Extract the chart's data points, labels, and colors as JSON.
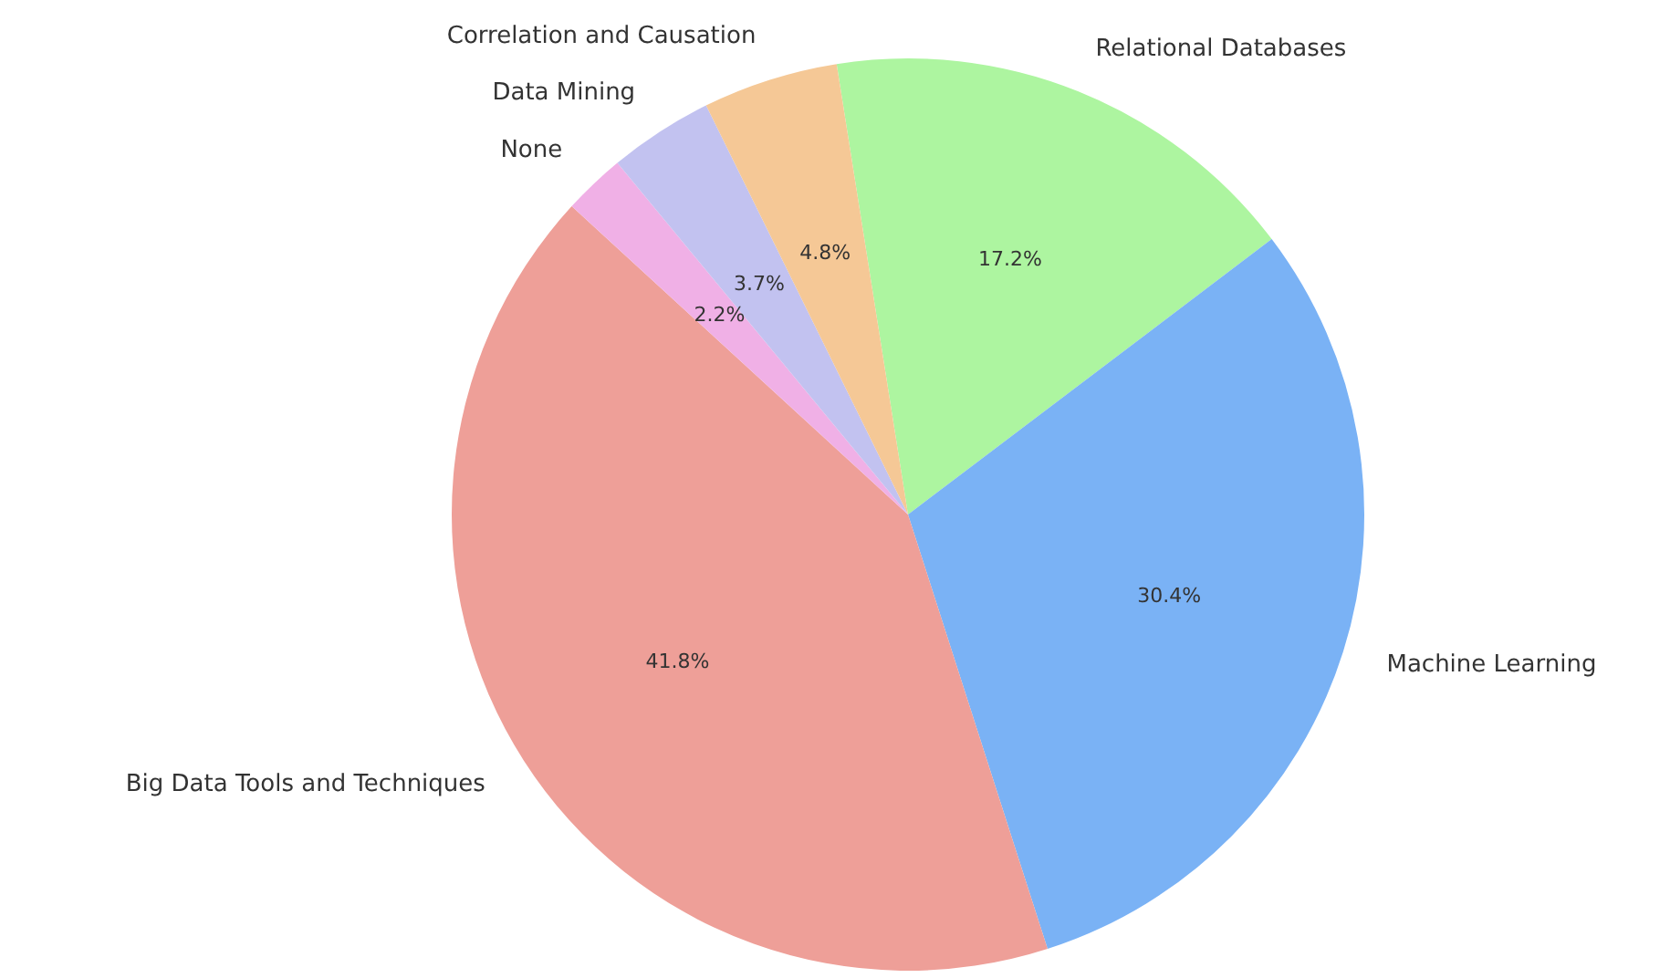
{
  "chart_data": {
    "type": "pie",
    "categories": [
      "Relational Databases",
      "Machine Learning",
      "Big Data Tools and Techniques",
      "None",
      "Data Mining",
      "Correlation and Causation"
    ],
    "values": [
      17.2,
      30.4,
      41.8,
      2.2,
      3.7,
      4.8
    ],
    "colors": [
      "#adf5a0",
      "#7ab2f5",
      "#ee9f98",
      "#f0b0e6",
      "#c2c2f0",
      "#f5c896"
    ],
    "value_labels": [
      "17.2%",
      "30.4%",
      "41.8%",
      "2.2%",
      "3.7%",
      "4.8%"
    ]
  }
}
